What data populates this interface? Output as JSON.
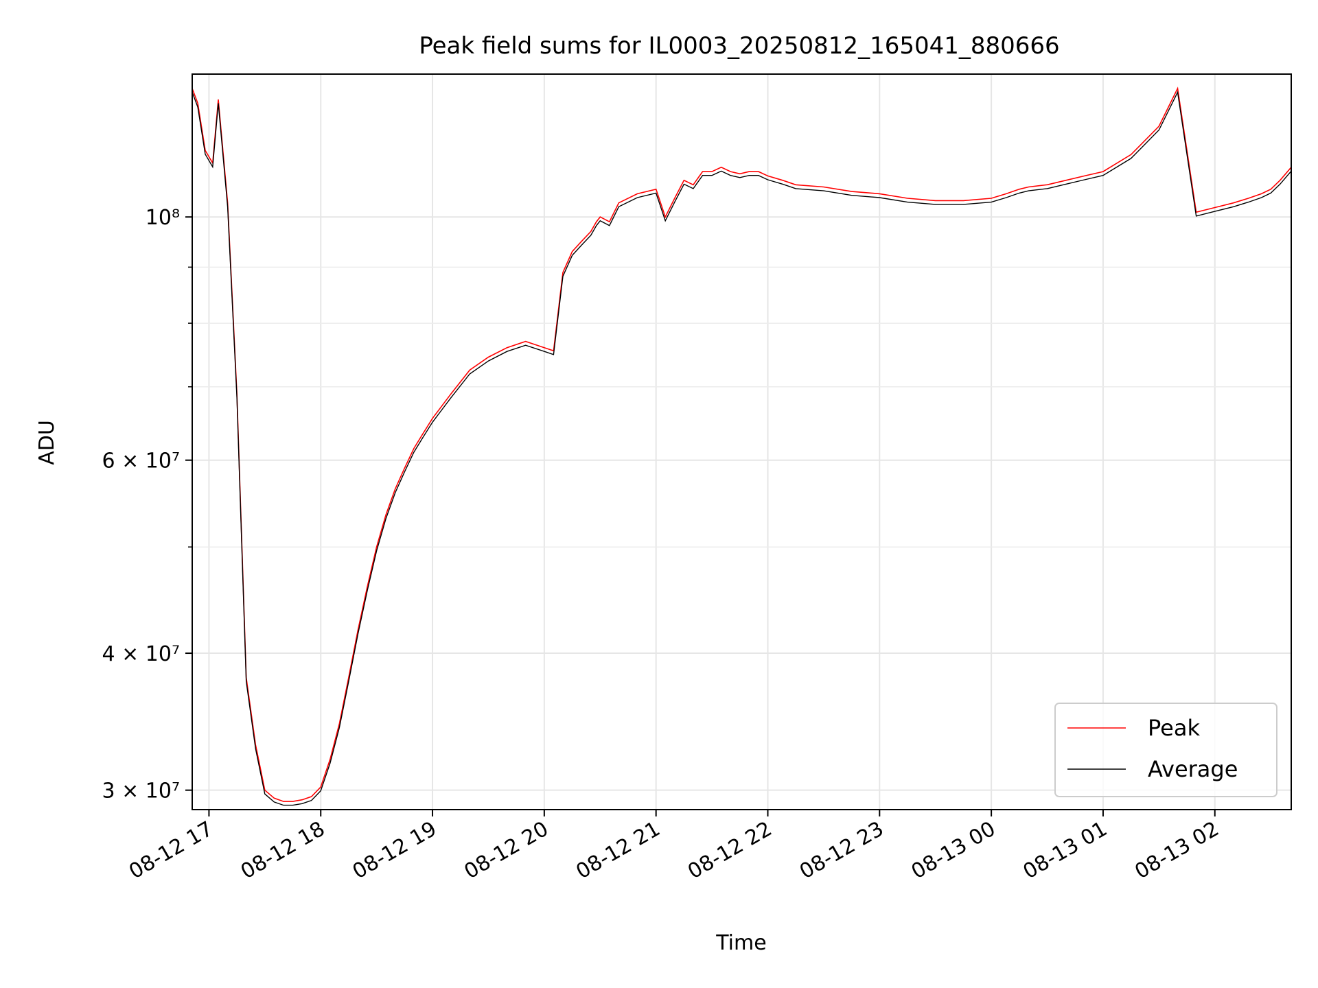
{
  "chart_data": {
    "type": "line",
    "title": "Peak field sums for IL0003_20250812_165041_880666",
    "xlabel": "Time",
    "ylabel": "ADU",
    "x_ticks": [
      "08-12 17",
      "08-12 18",
      "08-12 19",
      "08-12 20",
      "08-12 21",
      "08-12 22",
      "08-12 23",
      "08-13 00",
      "08-13 01",
      "08-13 02"
    ],
    "y_ticks": [
      {
        "value": 30000000,
        "label": "3 × 10⁷"
      },
      {
        "value": 40000000,
        "label": "4 × 10⁷"
      },
      {
        "value": 60000000,
        "label": "6 × 10⁷"
      },
      {
        "value": 100000000,
        "label": "10⁸"
      }
    ],
    "y_minor_ticks": [
      50000000,
      70000000,
      80000000,
      90000000
    ],
    "y_scale": "log",
    "xlim": [
      "08-12 16:51",
      "08-13 02:41"
    ],
    "ylim": [
      28800000,
      135000000
    ],
    "grid": true,
    "legend_position": "lower right",
    "series": [
      {
        "name": "Peak",
        "color": "#ff0000",
        "x": [
          "08-12 16:51",
          "08-12 16:54",
          "08-12 16:58",
          "08-12 17:02",
          "08-12 17:05",
          "08-12 17:10",
          "08-12 17:15",
          "08-12 17:20",
          "08-12 17:25",
          "08-12 17:30",
          "08-12 17:35",
          "08-12 17:40",
          "08-12 17:45",
          "08-12 17:50",
          "08-12 17:55",
          "08-12 18:00",
          "08-12 18:05",
          "08-12 18:10",
          "08-12 18:15",
          "08-12 18:20",
          "08-12 18:25",
          "08-12 18:30",
          "08-12 18:35",
          "08-12 18:40",
          "08-12 18:45",
          "08-12 18:50",
          "08-12 18:55",
          "08-12 19:00",
          "08-12 19:10",
          "08-12 19:20",
          "08-12 19:30",
          "08-12 19:40",
          "08-12 19:50",
          "08-12 20:00",
          "08-12 20:05",
          "08-12 20:10",
          "08-12 20:15",
          "08-12 20:20",
          "08-12 20:25",
          "08-12 20:28",
          "08-12 20:30",
          "08-12 20:35",
          "08-12 20:40",
          "08-12 20:50",
          "08-12 21:00",
          "08-12 21:05",
          "08-12 21:10",
          "08-12 21:15",
          "08-12 21:20",
          "08-12 21:25",
          "08-12 21:30",
          "08-12 21:35",
          "08-12 21:40",
          "08-12 21:45",
          "08-12 21:50",
          "08-12 21:55",
          "08-12 22:00",
          "08-12 22:08",
          "08-12 22:15",
          "08-12 22:30",
          "08-12 22:45",
          "08-12 23:00",
          "08-12 23:15",
          "08-12 23:30",
          "08-12 23:45",
          "08-13 00:00",
          "08-13 00:08",
          "08-13 00:15",
          "08-13 00:20",
          "08-13 00:30",
          "08-13 00:40",
          "08-13 00:50",
          "08-13 01:00",
          "08-13 01:15",
          "08-13 01:30",
          "08-13 01:40",
          "08-13 01:50",
          "08-13 02:00",
          "08-13 02:10",
          "08-13 02:18",
          "08-13 02:25",
          "08-13 02:30",
          "08-13 02:35",
          "08-13 02:41"
        ],
        "values": [
          131000000,
          127000000,
          115000000,
          112000000,
          128000000,
          103000000,
          69000000,
          38000000,
          33000000,
          30000000,
          29500000,
          29300000,
          29300000,
          29400000,
          29600000,
          30200000,
          32000000,
          34500000,
          38000000,
          42000000,
          46000000,
          50000000,
          53500000,
          56500000,
          59000000,
          61500000,
          63500000,
          65500000,
          69000000,
          72500000,
          74500000,
          76000000,
          77000000,
          76000000,
          75500000,
          89000000,
          93000000,
          95000000,
          97000000,
          99000000,
          100000000,
          99000000,
          103000000,
          105000000,
          106000000,
          100000000,
          104000000,
          108000000,
          107000000,
          110000000,
          110000000,
          111000000,
          110000000,
          109500000,
          110000000,
          110000000,
          109000000,
          108000000,
          107000000,
          106500000,
          105500000,
          105000000,
          104000000,
          103500000,
          103500000,
          104000000,
          105000000,
          106000000,
          106500000,
          107000000,
          108000000,
          109000000,
          110000000,
          114000000,
          121000000,
          131000000,
          101000000,
          102000000,
          103000000,
          104000000,
          105000000,
          106000000,
          108000000,
          111000000
        ],
        "values_note": ""
      },
      {
        "name": "Average",
        "color": "#000000",
        "x": [],
        "values": []
      }
    ]
  },
  "legend": {
    "items": [
      {
        "label": "Peak",
        "color": "#ff0000"
      },
      {
        "label": "Average",
        "color": "#000000"
      }
    ]
  }
}
